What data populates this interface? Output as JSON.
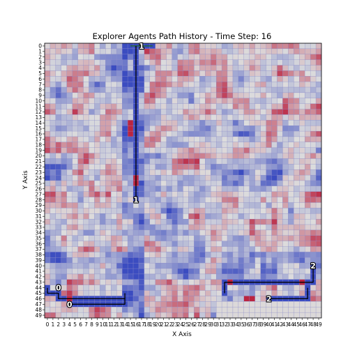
{
  "chart_data": {
    "type": "heatmap",
    "title": "Explorer Agents Path History - Time Step: 16",
    "xlabel": "X Axis",
    "ylabel": "Y Axis",
    "x_ticks": [
      0,
      1,
      2,
      3,
      4,
      5,
      6,
      7,
      8,
      9,
      10,
      11,
      12,
      13,
      14,
      15,
      16,
      17,
      18,
      19,
      20,
      21,
      22,
      23,
      24,
      25,
      26,
      27,
      28,
      29,
      30,
      31,
      32,
      33,
      34,
      35,
      36,
      37,
      38,
      39,
      40,
      41,
      42,
      43,
      44,
      45,
      46,
      47,
      48,
      49
    ],
    "y_ticks": [
      0,
      1,
      2,
      3,
      4,
      5,
      6,
      7,
      8,
      9,
      10,
      11,
      12,
      13,
      14,
      15,
      16,
      17,
      18,
      19,
      20,
      21,
      22,
      23,
      24,
      25,
      26,
      27,
      28,
      29,
      30,
      31,
      32,
      33,
      34,
      35,
      36,
      37,
      38,
      39,
      40,
      41,
      42,
      43,
      44,
      45,
      46,
      47,
      48,
      49
    ],
    "y_axis_inverted": true,
    "grid": true,
    "colormap": "coolwarm",
    "colors": {
      "cold": "#3b4cc0",
      "neutral": "#dddddd",
      "warm": "#b40426",
      "path": "#000000",
      "path_alt": "#1a6b1a",
      "grid": "#8c8cc8"
    },
    "agents": [
      {
        "label": "0",
        "label_at": [
          2,
          44
        ],
        "path": [
          [
            0,
            44
          ],
          [
            0,
            45
          ],
          [
            1,
            45
          ],
          [
            2,
            45
          ],
          [
            2,
            46
          ],
          [
            3,
            46
          ],
          [
            4,
            46
          ],
          [
            5,
            46
          ],
          [
            6,
            46
          ],
          [
            7,
            46
          ],
          [
            8,
            46
          ],
          [
            9,
            46
          ],
          [
            10,
            46
          ],
          [
            11,
            46
          ],
          [
            12,
            46
          ],
          [
            13,
            46
          ],
          [
            14,
            46
          ],
          [
            14,
            45
          ]
        ]
      },
      {
        "label": "0",
        "label_at": [
          4,
          47
        ],
        "path": [
          [
            4,
            47
          ],
          [
            5,
            47
          ],
          [
            6,
            47
          ],
          [
            7,
            47
          ],
          [
            8,
            47
          ],
          [
            9,
            47
          ],
          [
            10,
            47
          ],
          [
            11,
            47
          ],
          [
            12,
            47
          ],
          [
            13,
            47
          ],
          [
            14,
            47
          ],
          [
            14,
            46
          ]
        ]
      },
      {
        "label": "1",
        "label_at": [
          17,
          0
        ],
        "path": [
          [
            15,
            0
          ],
          [
            16,
            0
          ],
          [
            17,
            0
          ],
          [
            18,
            0
          ],
          [
            19,
            0
          ]
        ]
      },
      {
        "label": "1",
        "label_at": [
          16,
          28
        ],
        "path": [
          [
            16,
            28
          ],
          [
            16,
            27
          ],
          [
            16,
            26
          ],
          [
            16,
            25
          ],
          [
            16,
            24
          ],
          [
            16,
            23
          ],
          [
            16,
            22
          ],
          [
            16,
            21
          ],
          [
            16,
            20
          ],
          [
            16,
            19
          ],
          [
            16,
            18
          ],
          [
            16,
            17
          ],
          [
            16,
            16
          ],
          [
            16,
            15
          ],
          [
            16,
            14
          ],
          [
            16,
            13
          ],
          [
            16,
            12
          ],
          [
            16,
            11
          ],
          [
            16,
            10
          ],
          [
            16,
            9
          ],
          [
            16,
            8
          ],
          [
            16,
            7
          ],
          [
            16,
            6
          ],
          [
            16,
            5
          ],
          [
            16,
            4
          ],
          [
            16,
            3
          ],
          [
            16,
            2
          ],
          [
            16,
            1
          ],
          [
            16,
            0
          ]
        ]
      },
      {
        "label": "2",
        "label_at": [
          48,
          40
        ],
        "path": [
          [
            48,
            40
          ],
          [
            48,
            41
          ],
          [
            48,
            42
          ],
          [
            48,
            43
          ],
          [
            47,
            43
          ],
          [
            46,
            43
          ],
          [
            45,
            43
          ],
          [
            44,
            43
          ],
          [
            43,
            43
          ],
          [
            42,
            43
          ],
          [
            41,
            43
          ],
          [
            40,
            43
          ],
          [
            39,
            43
          ],
          [
            38,
            43
          ],
          [
            37,
            43
          ],
          [
            36,
            43
          ],
          [
            35,
            43
          ],
          [
            34,
            43
          ],
          [
            33,
            43
          ],
          [
            32,
            43
          ],
          [
            32,
            44
          ],
          [
            32,
            45
          ]
        ]
      },
      {
        "label": "2",
        "label_at": [
          40,
          46
        ],
        "path": [
          [
            40,
            46
          ],
          [
            41,
            46
          ],
          [
            42,
            46
          ],
          [
            43,
            46
          ],
          [
            44,
            46
          ],
          [
            45,
            46
          ],
          [
            46,
            46
          ],
          [
            47,
            46
          ],
          [
            47,
            45
          ],
          [
            47,
            44
          ]
        ]
      }
    ]
  }
}
